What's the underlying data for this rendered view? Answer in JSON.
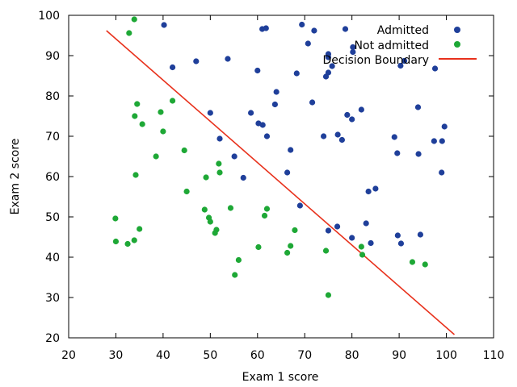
{
  "chart_data": {
    "type": "scatter",
    "title": "",
    "xlabel": "Exam 1 score",
    "ylabel": "Exam 2 score",
    "xlim": [
      20,
      110
    ],
    "ylim": [
      20,
      100
    ],
    "xticks": [
      20,
      30,
      40,
      50,
      60,
      70,
      80,
      90,
      100,
      110
    ],
    "yticks": [
      20,
      30,
      40,
      50,
      60,
      70,
      80,
      90,
      100
    ],
    "grid": false,
    "legend_position": "top-right",
    "series": [
      {
        "name": "Admitted",
        "color": "#1f3f9a",
        "marker": "circle",
        "points": [
          [
            40.2,
            97.6
          ],
          [
            42.0,
            87.1
          ],
          [
            47.0,
            88.6
          ],
          [
            50.0,
            75.8
          ],
          [
            52.0,
            69.4
          ],
          [
            53.7,
            89.2
          ],
          [
            55.1,
            65.0
          ],
          [
            57.0,
            59.7
          ],
          [
            58.6,
            75.8
          ],
          [
            60.0,
            86.3
          ],
          [
            60.2,
            73.2
          ],
          [
            61.0,
            96.6
          ],
          [
            61.8,
            96.8
          ],
          [
            61.1,
            72.8
          ],
          [
            62.0,
            70.0
          ],
          [
            63.7,
            77.9
          ],
          [
            64.0,
            81.0
          ],
          [
            66.3,
            61.0
          ],
          [
            67.0,
            66.6
          ],
          [
            68.3,
            85.6
          ],
          [
            69.0,
            52.8
          ],
          [
            69.4,
            97.7
          ],
          [
            70.7,
            93.0
          ],
          [
            71.6,
            78.4
          ],
          [
            72.0,
            96.2
          ],
          [
            74.0,
            70.0
          ],
          [
            74.5,
            84.8
          ],
          [
            75.0,
            46.6
          ],
          [
            75.0,
            85.8
          ],
          [
            75.0,
            89.6
          ],
          [
            75.0,
            90.4
          ],
          [
            75.8,
            87.4
          ],
          [
            76.9,
            47.6
          ],
          [
            77.0,
            70.4
          ],
          [
            77.9,
            69.1
          ],
          [
            78.6,
            96.6
          ],
          [
            79.0,
            75.3
          ],
          [
            80.0,
            44.8
          ],
          [
            80.0,
            74.2
          ],
          [
            80.2,
            90.9
          ],
          [
            80.2,
            92.1
          ],
          [
            82.0,
            76.6
          ],
          [
            83.0,
            48.4
          ],
          [
            83.5,
            56.3
          ],
          [
            84.0,
            43.5
          ],
          [
            85.0,
            57.0
          ],
          [
            89.0,
            69.8
          ],
          [
            89.6,
            65.8
          ],
          [
            89.7,
            45.4
          ],
          [
            90.3,
            87.5
          ],
          [
            90.4,
            43.4
          ],
          [
            91.1,
            88.7
          ],
          [
            94.0,
            77.2
          ],
          [
            94.1,
            65.6
          ],
          [
            94.5,
            45.6
          ],
          [
            97.4,
            68.8
          ],
          [
            97.6,
            86.8
          ],
          [
            99.0,
            61.0
          ],
          [
            99.1,
            68.8
          ],
          [
            99.6,
            72.4
          ]
        ]
      },
      {
        "name": "Not admitted",
        "color": "#1ea836",
        "marker": "circle",
        "points": [
          [
            30.0,
            43.9
          ],
          [
            32.5,
            43.3
          ],
          [
            32.8,
            95.6
          ],
          [
            33.9,
            44.2
          ],
          [
            34.0,
            75.0
          ],
          [
            34.2,
            60.4
          ],
          [
            34.5,
            78.0
          ],
          [
            35.0,
            47.0
          ],
          [
            35.6,
            73.0
          ],
          [
            38.5,
            65.0
          ],
          [
            39.5,
            76.0
          ],
          [
            40.0,
            71.2
          ],
          [
            42.0,
            78.8
          ],
          [
            44.5,
            66.5
          ],
          [
            45.0,
            56.3
          ],
          [
            48.8,
            51.8
          ],
          [
            49.1,
            59.8
          ],
          [
            49.7,
            49.8
          ],
          [
            50.0,
            48.8
          ],
          [
            51.0,
            46.0
          ],
          [
            51.3,
            46.8
          ],
          [
            51.8,
            63.2
          ],
          [
            52.0,
            61.0
          ],
          [
            54.3,
            52.2
          ],
          [
            55.2,
            35.6
          ],
          [
            56.0,
            39.3
          ],
          [
            60.2,
            42.5
          ],
          [
            61.5,
            50.3
          ],
          [
            62.0,
            52.0
          ],
          [
            66.3,
            41.1
          ],
          [
            67.0,
            42.8
          ],
          [
            67.9,
            46.7
          ],
          [
            74.5,
            41.6
          ],
          [
            75.0,
            30.6
          ],
          [
            82.0,
            42.6
          ],
          [
            82.2,
            40.6
          ],
          [
            92.8,
            38.8
          ],
          [
            95.5,
            38.2
          ],
          [
            29.9,
            49.6
          ],
          [
            33.9,
            99.0
          ]
        ]
      }
    ],
    "decision_boundary": {
      "name": "Decision Boundary",
      "color": "#e8311c",
      "x": [
        28.0,
        101.7
      ],
      "y": [
        96.2,
        20.8
      ]
    }
  }
}
